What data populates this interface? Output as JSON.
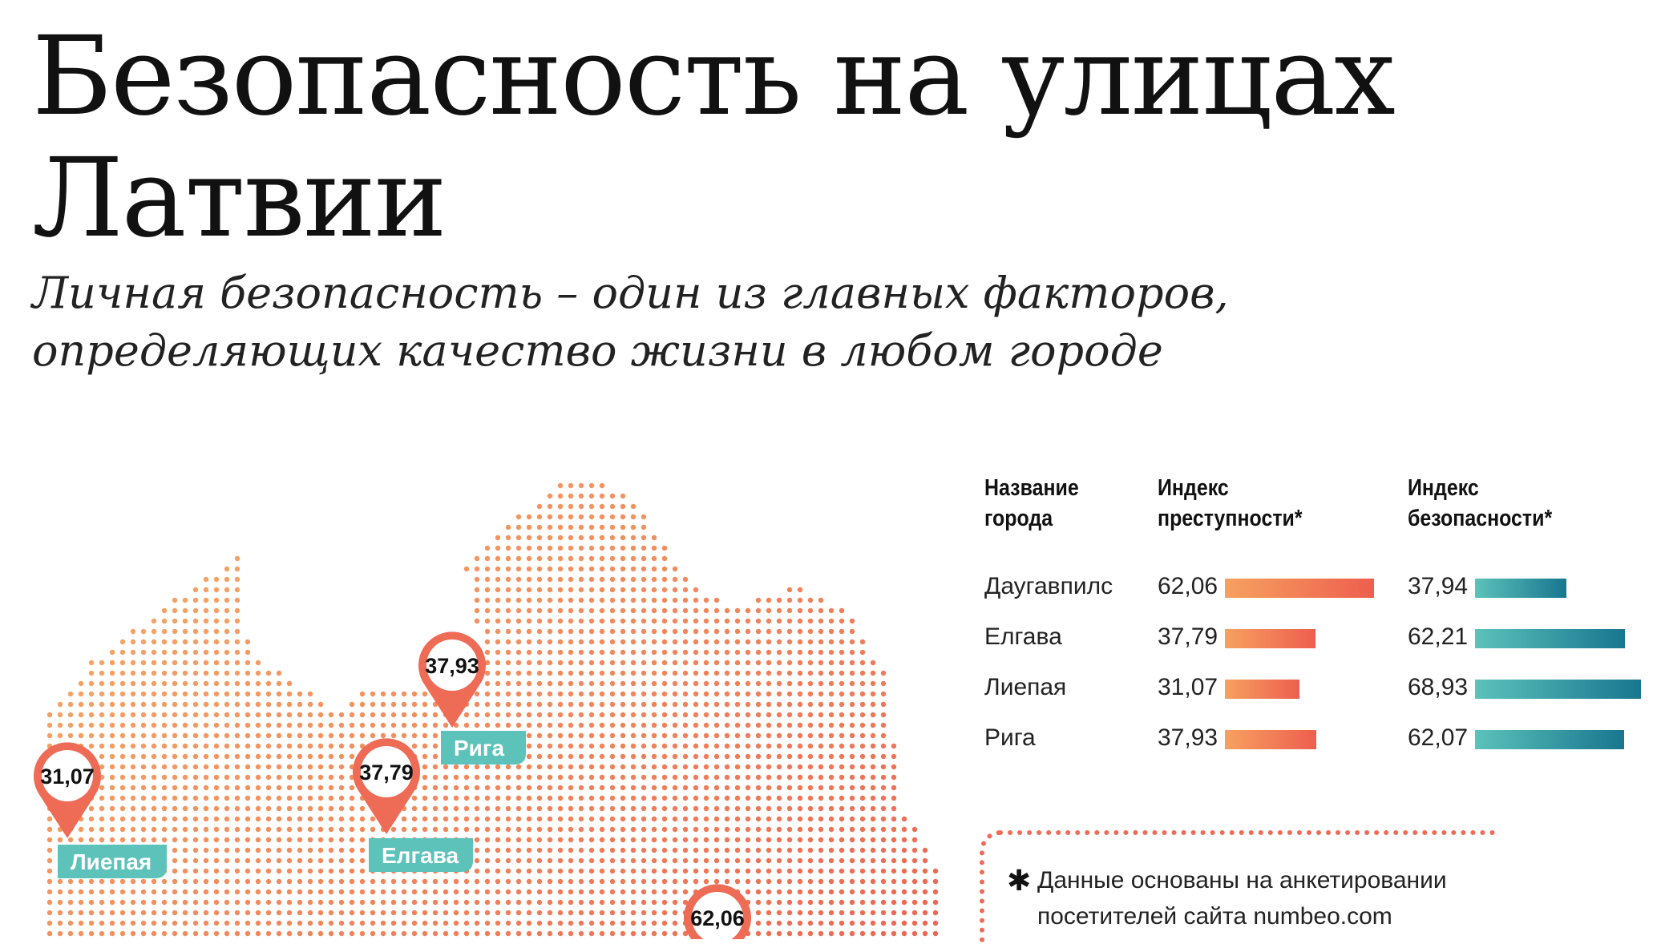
{
  "title": "Безопасность на улицах Латвии",
  "subtitle": "Личная безопасность – один из главных факторов, определяющих качество жизни в любом городе",
  "table": {
    "headers": {
      "city": "Название\nгорода",
      "crime": "Индекс\nпреступности*",
      "safety": "Индекс\nбезопасности*"
    },
    "rows": [
      {
        "city": "Даугавпилс",
        "crime": "62,06",
        "safety": "37,94",
        "crime_value": 62.06,
        "safety_value": 37.94
      },
      {
        "city": "Елгава",
        "crime": "37,79",
        "safety": "62,21",
        "crime_value": 37.79,
        "safety_value": 62.21
      },
      {
        "city": "Лиепая",
        "crime": "31,07",
        "safety": "68,93",
        "crime_value": 31.07,
        "safety_value": 68.93
      },
      {
        "city": "Рига",
        "crime": "37,93",
        "safety": "62,07",
        "crime_value": 37.93,
        "safety_value": 62.07
      }
    ]
  },
  "map": {
    "pins": [
      {
        "id": "liepaja",
        "value": "31,07",
        "label": "Лиепая"
      },
      {
        "id": "jelgava",
        "value": "37,79",
        "label": "Елгава"
      },
      {
        "id": "riga",
        "value": "37,93",
        "label": "Рига"
      },
      {
        "id": "daugavpils",
        "value": "62,06",
        "label": ""
      }
    ]
  },
  "note": {
    "star": "✱",
    "text": "Данные основаны на анкетировании посетителей сайта numbeo.com"
  },
  "colors": {
    "crime_start": "#f6a160",
    "crime_end": "#ee5e4f",
    "safety_start": "#5cc2ba",
    "safety_end": "#18768f",
    "pin": "#ee6b55",
    "label_bg": "#5cc2ba"
  }
}
